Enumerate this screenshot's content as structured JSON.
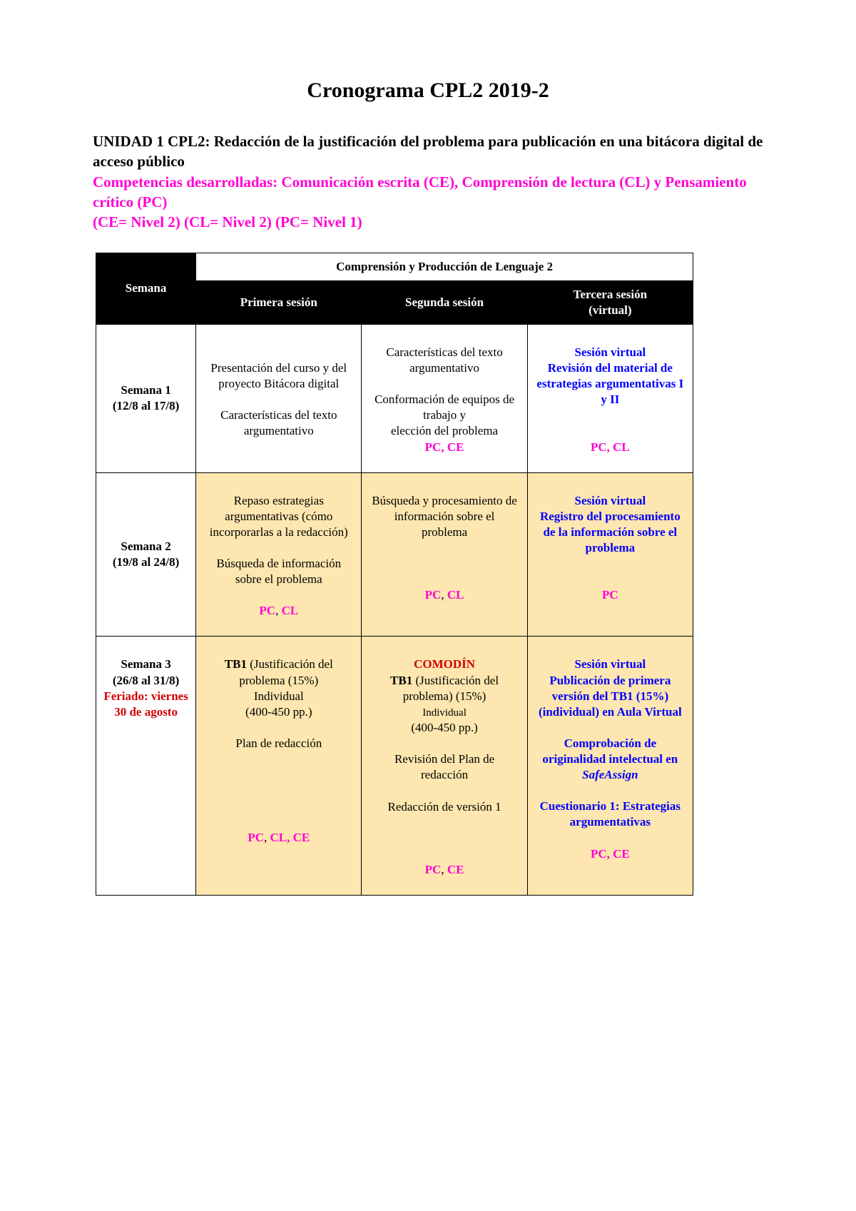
{
  "title": "Cronograma CPL2 2019-2",
  "unit_black_1": "UNIDAD 1 CPL2: Redacción de la justificación del problema para publicación en una bitácora digital de acceso público",
  "unit_magenta_1": "Competencias desarrolladas: Comunicación escrita (CE), Comprensión de lectura  (CL) y Pensamiento crítico (PC)",
  "unit_magenta_2": "(CE= Nivel 2) (CL= Nivel 2) (PC= Nivel 1)",
  "table": {
    "header_semana": "Semana",
    "header_course": "Comprensión y Producción de Lenguaje 2",
    "header_s1": "Primera sesión",
    "header_s2": "Segunda sesión",
    "header_s3a": "Tercera sesión",
    "header_s3b": "(virtual)",
    "rows": [
      {
        "bg": "white",
        "week_line1": "Semana 1",
        "week_line2": "(12/8 al 17/8)",
        "s1_html": "<span>Presentación del curso y del proyecto Bitácora digital</span><br><br><span>Características del texto argumentativo</span>",
        "s2_html": "<span>Características del texto argumentativo</span><br><br><span>Conformación de equipos de trabajo y</span><br><span>elección del problema</span><br><span class='magenta tags'>PC, CE</span>",
        "s3_html": "<span class='blue'>Sesión virtual</span><br><span class='blue'>Revisión del material de estrategias argumentativas I y II</span><br><br><br><span class='magenta'>PC, CL</span>"
      },
      {
        "bg": "yellow",
        "week_line1": "Semana 2",
        "week_line2": "(19/8 al 24/8)",
        "s1_html": "<span>Repaso estrategias argumentativas (cómo incorporarlas a la redacción)</span><br><br><span>Búsqueda de información sobre el problema</span><br><br><span class='magenta'>PC</span><span>, </span><span class='magenta'>CL</span>",
        "s2_html": "<span>Búsqueda y procesamiento de información sobre el problema</span><br><br><br><br><span class='magenta'>PC</span><span>, </span><span class='magenta'>CL</span>",
        "s3_html": "<span class='blue'>Sesión virtual</span><br><span class='blue'>Registro del procesamiento de la información sobre el problema</span><br><br><br><span class='magenta'>PC</span>"
      },
      {
        "bg": "yellow",
        "week_line1": "Semana 3",
        "week_line2": "(26/8 al 31/8)",
        "week_extra_html": "<br><span class='red'>Feriado: viernes 30 de agosto</span>",
        "s1_html": "<span class='black-bold'>TB1</span><span> (Justificación del problema  (15%)</span><br><span>Individual</span><br><span>(400-450 pp.)</span><br><br><span>Plan de redacción</span><br><br><br><br><br><br><span class='magenta'>PC</span><span>, </span><span class='magenta'>CL, CE</span>",
        "s2_html": "<span class='red'>COMODÍN</span><br><span class='black-bold'>TB1</span><span> (Justificación del problema) (15%)</span><br><span style='font-size:15px'>Individual</span><br><span>(400-450 pp.)</span><br><br><span>Revisión del Plan de redacción</span><br><br><span>Redacción de versión 1</span><br><br><br><br><span class='magenta'>PC</span><span>, </span><span class='magenta'>CE</span>",
        "s3_html": "<span class='blue'>Sesión virtual</span><br><span class='blue'>Publicación de primera versión del TB1 (15%) (individual) en Aula Virtual</span><br><br><span class='blue'>Comprobación de originalidad intelectual en</span><br><span class='blue italic'>SafeAssign</span><br><br><span class='blue'>Cuestionario 1: Estrategias argumentativas</span><br><br><span class='magenta'>PC, CE</span>"
      }
    ]
  }
}
